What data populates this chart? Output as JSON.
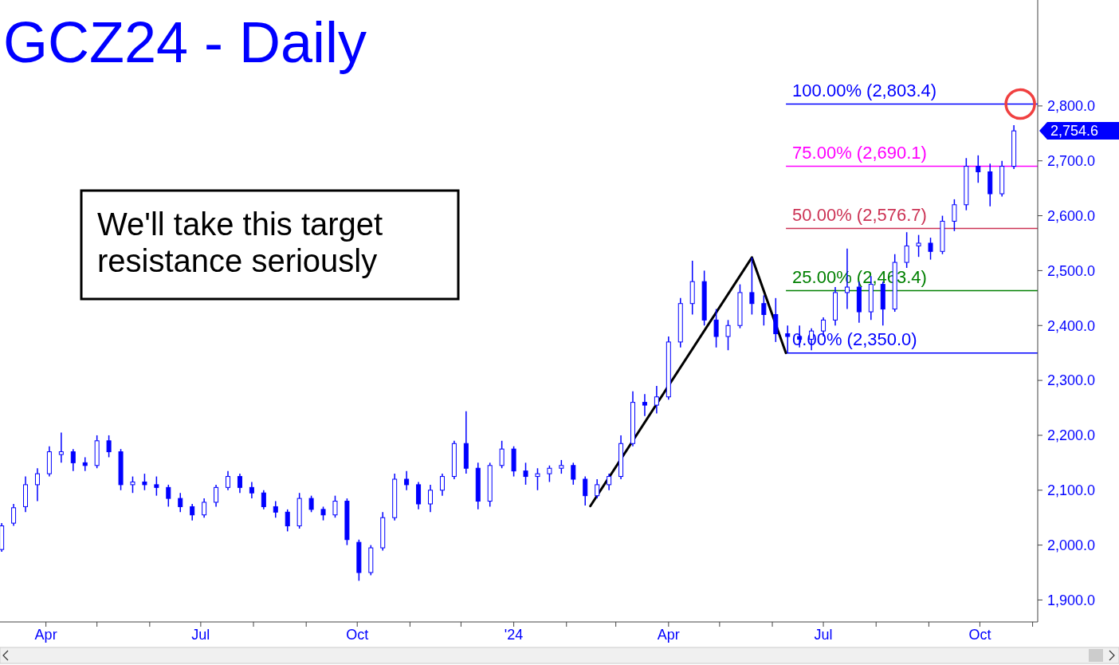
{
  "chart_data": {
    "type": "candlestick",
    "title": "GCZ24 - Daily",
    "color": "#0000ff",
    "x": [
      "2023-03-06",
      "2023-03-13",
      "2023-03-20",
      "2023-03-27",
      "2023-04-03",
      "2023-04-10",
      "2023-04-17",
      "2023-04-24",
      "2023-05-01",
      "2023-05-08",
      "2023-05-15",
      "2023-05-22",
      "2023-05-29",
      "2023-06-05",
      "2023-06-12",
      "2023-06-19",
      "2023-06-26",
      "2023-07-03",
      "2023-07-10",
      "2023-07-17",
      "2023-07-24",
      "2023-07-31",
      "2023-08-07",
      "2023-08-14",
      "2023-08-21",
      "2023-08-28",
      "2023-09-04",
      "2023-09-11",
      "2023-09-18",
      "2023-09-25",
      "2023-10-02",
      "2023-10-09",
      "2023-10-16",
      "2023-10-23",
      "2023-10-30",
      "2023-11-06",
      "2023-11-13",
      "2023-11-20",
      "2023-11-27",
      "2023-12-04",
      "2023-12-11",
      "2023-12-18",
      "2023-12-25",
      "2024-01-01",
      "2024-01-08",
      "2024-01-15",
      "2024-01-22",
      "2024-01-29",
      "2024-02-05",
      "2024-02-12",
      "2024-02-19",
      "2024-02-26",
      "2024-03-04",
      "2024-03-11",
      "2024-03-18",
      "2024-03-25",
      "2024-04-01",
      "2024-04-08",
      "2024-04-15",
      "2024-04-22",
      "2024-04-29",
      "2024-05-06",
      "2024-05-13",
      "2024-05-20",
      "2024-05-27",
      "2024-06-03",
      "2024-06-10",
      "2024-06-17",
      "2024-06-24",
      "2024-07-01",
      "2024-07-08",
      "2024-07-15",
      "2024-07-22",
      "2024-07-29",
      "2024-08-05",
      "2024-08-12",
      "2024-08-19",
      "2024-08-26",
      "2024-09-02",
      "2024-09-09",
      "2024-09-16",
      "2024-09-23",
      "2024-09-30",
      "2024-10-07",
      "2024-10-14",
      "2024-10-21"
    ],
    "ohlc": [
      [
        1992,
        2040,
        1988,
        2035
      ],
      [
        2040,
        2075,
        2035,
        2068
      ],
      [
        2070,
        2125,
        2060,
        2110
      ],
      [
        2110,
        2140,
        2080,
        2130
      ],
      [
        2130,
        2180,
        2125,
        2170
      ],
      [
        2165,
        2205,
        2150,
        2170
      ],
      [
        2170,
        2175,
        2135,
        2150
      ],
      [
        2150,
        2160,
        2135,
        2145
      ],
      [
        2145,
        2200,
        2140,
        2190
      ],
      [
        2190,
        2200,
        2160,
        2170
      ],
      [
        2170,
        2175,
        2100,
        2110
      ],
      [
        2110,
        2125,
        2095,
        2115
      ],
      [
        2115,
        2130,
        2100,
        2110
      ],
      [
        2110,
        2125,
        2090,
        2105
      ],
      [
        2105,
        2110,
        2070,
        2085
      ],
      [
        2085,
        2095,
        2060,
        2070
      ],
      [
        2070,
        2075,
        2045,
        2055
      ],
      [
        2055,
        2085,
        2050,
        2078
      ],
      [
        2078,
        2110,
        2070,
        2105
      ],
      [
        2105,
        2135,
        2100,
        2125
      ],
      [
        2125,
        2130,
        2095,
        2105
      ],
      [
        2105,
        2115,
        2085,
        2095
      ],
      [
        2095,
        2100,
        2065,
        2070
      ],
      [
        2070,
        2080,
        2050,
        2060
      ],
      [
        2060,
        2065,
        2025,
        2035
      ],
      [
        2035,
        2095,
        2030,
        2085
      ],
      [
        2085,
        2090,
        2060,
        2065
      ],
      [
        2065,
        2070,
        2045,
        2055
      ],
      [
        2055,
        2090,
        2050,
        2080
      ],
      [
        2080,
        2085,
        2000,
        2010
      ],
      [
        2005,
        2010,
        1935,
        1950
      ],
      [
        1950,
        2000,
        1945,
        1995
      ],
      [
        1995,
        2060,
        1990,
        2050
      ],
      [
        2050,
        2130,
        2045,
        2120
      ],
      [
        2120,
        2135,
        2100,
        2110
      ],
      [
        2110,
        2115,
        2065,
        2075
      ],
      [
        2075,
        2110,
        2060,
        2100
      ],
      [
        2100,
        2130,
        2090,
        2125
      ],
      [
        2125,
        2190,
        2120,
        2185
      ],
      [
        2185,
        2244,
        2130,
        2140
      ],
      [
        2140,
        2150,
        2065,
        2080
      ],
      [
        2080,
        2150,
        2070,
        2145
      ],
      [
        2145,
        2190,
        2140,
        2175
      ],
      [
        2175,
        2180,
        2125,
        2135
      ],
      [
        2135,
        2150,
        2110,
        2125
      ],
      [
        2125,
        2140,
        2100,
        2130
      ],
      [
        2130,
        2145,
        2115,
        2140
      ],
      [
        2140,
        2155,
        2130,
        2145
      ],
      [
        2145,
        2150,
        2110,
        2120
      ],
      [
        2120,
        2125,
        2072,
        2090
      ],
      [
        2090,
        2120,
        2085,
        2110
      ],
      [
        2110,
        2130,
        2100,
        2125
      ],
      [
        2125,
        2200,
        2120,
        2185
      ],
      [
        2185,
        2280,
        2180,
        2260
      ],
      [
        2260,
        2275,
        2235,
        2255
      ],
      [
        2255,
        2290,
        2240,
        2270
      ],
      [
        2270,
        2380,
        2265,
        2370
      ],
      [
        2370,
        2450,
        2360,
        2440
      ],
      [
        2440,
        2518,
        2420,
        2480
      ],
      [
        2480,
        2500,
        2400,
        2410
      ],
      [
        2410,
        2430,
        2360,
        2380
      ],
      [
        2380,
        2410,
        2355,
        2400
      ],
      [
        2400,
        2475,
        2395,
        2460
      ],
      [
        2460,
        2524,
        2420,
        2440
      ],
      [
        2440,
        2455,
        2400,
        2420
      ],
      [
        2420,
        2450,
        2370,
        2385
      ],
      [
        2385,
        2400,
        2350,
        2380
      ],
      [
        2380,
        2400,
        2360,
        2375
      ],
      [
        2375,
        2395,
        2355,
        2390
      ],
      [
        2390,
        2415,
        2380,
        2410
      ],
      [
        2410,
        2470,
        2400,
        2460
      ],
      [
        2460,
        2540,
        2430,
        2470
      ],
      [
        2470,
        2480,
        2405,
        2425
      ],
      [
        2425,
        2490,
        2410,
        2475
      ],
      [
        2475,
        2480,
        2400,
        2430
      ],
      [
        2430,
        2530,
        2425,
        2515
      ],
      [
        2515,
        2570,
        2505,
        2545
      ],
      [
        2545,
        2565,
        2525,
        2550
      ],
      [
        2550,
        2560,
        2520,
        2535
      ],
      [
        2535,
        2600,
        2530,
        2590
      ],
      [
        2590,
        2630,
        2572,
        2620
      ],
      [
        2620,
        2705,
        2610,
        2690
      ],
      [
        2690,
        2710,
        2660,
        2680
      ],
      [
        2680,
        2695,
        2617,
        2640
      ],
      [
        2640,
        2700,
        2635,
        2690
      ],
      [
        2690,
        2765,
        2685,
        2754.6
      ]
    ],
    "series": [
      {
        "type": "line",
        "color": "#000000",
        "x": [
          "2024-02-15",
          "2024-05-20",
          "2024-06-09"
        ],
        "values": [
          2071,
          2524,
          2350
        ]
      }
    ],
    "xlim": [
      "2023-03-05",
      "2024-11-04"
    ],
    "xticks": [
      {
        "value": "2023-04-01",
        "label": "Apr"
      },
      {
        "value": "2023-05-01",
        "label": null
      },
      {
        "value": "2023-06-01",
        "label": null
      },
      {
        "value": "2023-07-01",
        "label": "Jul"
      },
      {
        "value": "2023-08-01",
        "label": null
      },
      {
        "value": "2023-09-01",
        "label": null
      },
      {
        "value": "2023-10-01",
        "label": "Oct"
      },
      {
        "value": "2023-11-01",
        "label": null
      },
      {
        "value": "2023-12-01",
        "label": null
      },
      {
        "value": "2024-01-01",
        "label": "'24"
      },
      {
        "value": "2024-02-01",
        "label": null
      },
      {
        "value": "2024-03-01",
        "label": null
      },
      {
        "value": "2024-04-01",
        "label": "Apr"
      },
      {
        "value": "2024-05-01",
        "label": null
      },
      {
        "value": "2024-06-01",
        "label": null
      },
      {
        "value": "2024-07-01",
        "label": "Jul"
      },
      {
        "value": "2024-08-01",
        "label": null
      },
      {
        "value": "2024-09-01",
        "label": null
      },
      {
        "value": "2024-10-01",
        "label": "Oct"
      },
      {
        "value": "2024-11-01",
        "label": null
      }
    ],
    "ylim": [
      1860,
      2993
    ],
    "yticks": [
      {
        "value": 1900,
        "label": "1,900.0"
      },
      {
        "value": 2000,
        "label": "2,000.0"
      },
      {
        "value": 2100,
        "label": "2,100.0"
      },
      {
        "value": 2200,
        "label": "2,200.0"
      },
      {
        "value": 2300,
        "label": "2,300.0"
      },
      {
        "value": 2400,
        "label": "2,400.0"
      },
      {
        "value": 2500,
        "label": "2,500.0"
      },
      {
        "value": 2600,
        "label": "2,600.0"
      },
      {
        "value": 2700,
        "label": "2,700.0"
      },
      {
        "value": 2800,
        "label": "2,800.0"
      }
    ],
    "ref_lines": [
      {
        "axis": "y",
        "value": 2803.4,
        "label": "100.00% (2,803.4)",
        "color": "#0000ff"
      },
      {
        "axis": "y",
        "value": 2690.1,
        "label": "75.00% (2,690.1)",
        "color": "#ff00ff"
      },
      {
        "axis": "y",
        "value": 2576.7,
        "label": "50.00% (2,576.7)",
        "color": "#cc3355"
      },
      {
        "axis": "y",
        "value": 2463.4,
        "label": "25.00% (2,463.4)",
        "color": "#008000"
      },
      {
        "axis": "y",
        "value": 2350.0,
        "label": "0.00% (2,350.0)",
        "color": "#0000ff"
      }
    ],
    "annotations": [
      "We'll take this target resistance seriously",
      "2,754.6"
    ]
  }
}
